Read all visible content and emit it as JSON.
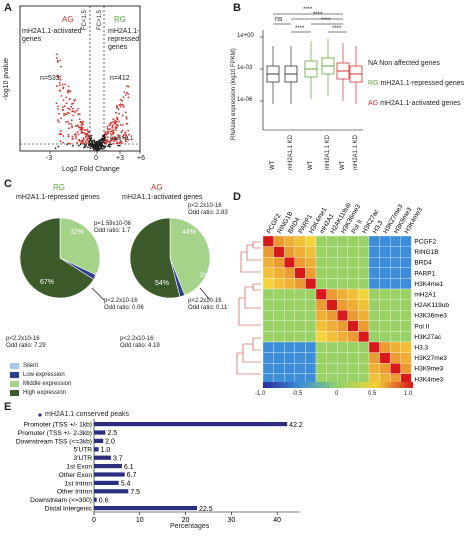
{
  "panels": {
    "a": "A",
    "b": "B",
    "c": "C",
    "d": "D",
    "e": "E"
  },
  "panelA": {
    "ag_tag": "AG",
    "ag_title": "mH2A1.1-activated genes",
    "ag_n": "n=533",
    "rg_tag": "RG",
    "rg_title": "mH2A1.1-repressed genes",
    "rg_n": "n=412",
    "fc_left": "FC<1.5",
    "fc_right": "FC>1.5",
    "padj": "padj>0.1",
    "ylabel": "-log10 pvalue",
    "xlabel": "Log2 Fold Change",
    "xticks": [
      "-3",
      "0",
      "+3",
      "+6"
    ]
  },
  "panelB": {
    "ylabel": "RNAseq expression (log10 FPKM)",
    "yticks": [
      "1e+00",
      "1e-03",
      "1e-06"
    ],
    "xticks": [
      "WT",
      "mH2A1.1 KD",
      "WT",
      "mH2A1.1 KD",
      "WT",
      "mH2A1.1 KD"
    ],
    "sig_ns": "ns",
    "sig_stars": [
      "****",
      "****",
      "****",
      "****",
      "****"
    ],
    "legend": [
      {
        "tag": "NA",
        "text": "Non affected genes",
        "color": "#333333"
      },
      {
        "tag": "RG",
        "text": "mH2A1.1-repressed genes",
        "color": "#5aa83a"
      },
      {
        "tag": "AG",
        "text": "mH2A1.1-activated genes",
        "color": "#d0312d"
      }
    ],
    "colors": {
      "na": "#333333",
      "rg": "#5aa83a",
      "ag": "#d0312d"
    }
  },
  "panelC": {
    "rg_tag": "RG",
    "rg_title": "mH2A1.1-repressed genes",
    "ag_tag": "AG",
    "ag_title": "mH2A1.1-activated genes",
    "rg_pct_top": "32%",
    "rg_pct_low": "2%",
    "rg_pct_bot": "67%",
    "ag_pct_top": "44%",
    "ag_pct_low": "2%",
    "ag_pct_bot": "54%",
    "rg_p1": "p=1.59x10-06",
    "rg_o1": "Odd ratio: 1.7",
    "rg_p2": "p<2.2x10-16",
    "rg_o2": "Odd ratio: 0.06",
    "rg_p3": "p<2.2x10-16",
    "rg_o3": "Odd ratio: 7.29",
    "ag_p1": "p<2.2x10-16",
    "ag_o1": "Odd ratio: 2.83",
    "ag_p2": "p<2.2x10-16",
    "ag_o2": "Odd ratio: 0.11",
    "ag_p3": "p<2.2x10-16",
    "ag_o3": "Odd ratio: 4.19",
    "legend": [
      {
        "text": "Silent",
        "color": "#a9c8e6"
      },
      {
        "text": "Low expression",
        "color": "#2c3e8c"
      },
      {
        "text": "Middle expression",
        "color": "#a6d38a"
      },
      {
        "text": "High expression",
        "color": "#3d5a2a"
      }
    ]
  },
  "panelD": {
    "labels": [
      "PCGF2",
      "RING1B",
      "BRD4",
      "PARP1",
      "H3K4me1",
      "mH2A1",
      "H2AK119ub",
      "H3K36me3",
      "Pol II",
      "H3K27ac",
      "H3.3",
      "H3K27me3",
      "H3K9me3",
      "H3K4me3"
    ],
    "scale_ticks": [
      "-1.0",
      "-0.5",
      "0",
      "0.5",
      "1.0"
    ]
  },
  "chart_data": {
    "type": "bar",
    "title": "mH2A1.1 conserved peaks",
    "xlabel": "Percentages",
    "categories": [
      "Promoter (TSS +/- 1kb)",
      "Promoter (TSS +/- 2-3kb)",
      "Downstream TSS (<=3kb)",
      "5'UTR",
      "3'UTR",
      "1st Exon",
      "Other Exon",
      "1st Intron",
      "Other Intron",
      "Downstream (<=300)",
      "Distal Intergenic"
    ],
    "values": [
      42.2,
      2.5,
      2.0,
      1.0,
      3.7,
      6.1,
      6.7,
      5.4,
      7.5,
      0.6,
      22.5
    ],
    "value_labels": [
      "42.2",
      "2.5",
      "2.0",
      "1.0",
      "3.7",
      "6.1",
      "6.7",
      "5.4",
      "7.5",
      "0.6",
      "22.5"
    ],
    "xticks": [
      "0",
      "10",
      "20",
      "30",
      "40"
    ],
    "xlim": [
      0,
      45
    ],
    "color": "#2b2d7e"
  }
}
